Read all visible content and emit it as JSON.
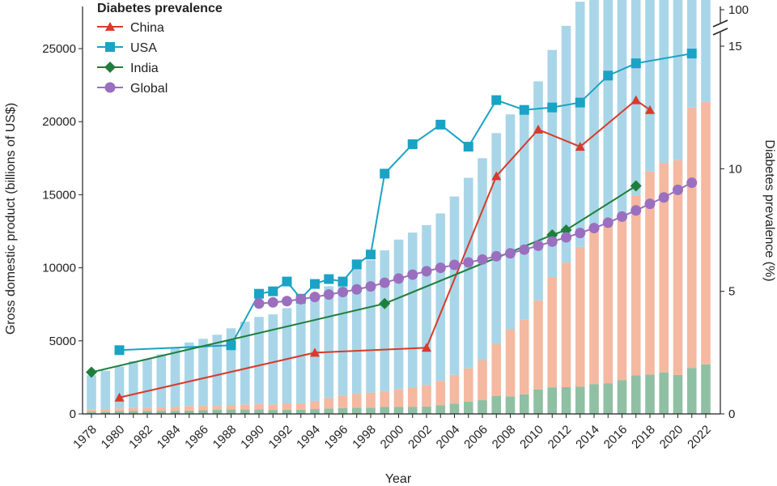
{
  "chart_data": {
    "type": "bar",
    "xlabel": "Year",
    "ylabel_left": "Gross domestic product (billions of US$)",
    "ylabel_right": "Diabetes prevalence (%)",
    "legend_title": "Diabetes prevalence",
    "legend_position": "top-left",
    "years": [
      1978,
      1979,
      1980,
      1981,
      1982,
      1983,
      1984,
      1985,
      1986,
      1987,
      1988,
      1989,
      1990,
      1991,
      1992,
      1993,
      1994,
      1995,
      1996,
      1997,
      1998,
      1999,
      2000,
      2001,
      2002,
      2003,
      2004,
      2005,
      2006,
      2007,
      2008,
      2009,
      2010,
      2011,
      2012,
      2013,
      2014,
      2015,
      2016,
      2017,
      2018,
      2019,
      2020,
      2021,
      2022
    ],
    "x_tick_labels": [
      "1978",
      "1980",
      "1982",
      "1984",
      "1986",
      "1988",
      "1990",
      "1992",
      "1994",
      "1996",
      "1998",
      "2000",
      "2002",
      "2004",
      "2006",
      "2008",
      "2010",
      "2012",
      "2014",
      "2016",
      "2018",
      "2020",
      "2022"
    ],
    "left_axis": {
      "ylim": [
        0,
        25000
      ],
      "ticks": [
        "0",
        "5000",
        "10000",
        "15000",
        "20000",
        "25000"
      ]
    },
    "right_axis": {
      "ylim": [
        0,
        15
      ],
      "ticks": [
        "0",
        "5",
        "10",
        "15"
      ],
      "break_label": "100"
    },
    "bar_series": [
      {
        "key": "india_gdp",
        "color": "#8fc0a3",
        "values": [
          140,
          150,
          190,
          200,
          200,
          210,
          210,
          230,
          250,
          280,
          300,
          300,
          320,
          270,
          290,
          280,
          330,
          370,
          400,
          420,
          430,
          470,
          470,
          490,
          510,
          600,
          710,
          830,
          940,
          1220,
          1200,
          1340,
          1680,
          1820,
          1830,
          1860,
          2040,
          2100,
          2300,
          2650,
          2700,
          2840,
          2670,
          3150,
          3390
        ]
      },
      {
        "key": "china_gdp",
        "color": "#f4b9a0",
        "values": [
          150,
          180,
          190,
          200,
          210,
          230,
          260,
          310,
          300,
          270,
          310,
          350,
          360,
          380,
          430,
          440,
          560,
          730,
          860,
          960,
          1030,
          1090,
          1210,
          1340,
          1470,
          1660,
          1960,
          2290,
          2750,
          3550,
          4590,
          5100,
          6090,
          7550,
          8530,
          9570,
          10480,
          11060,
          11230,
          12310,
          13890,
          14340,
          14690,
          17820,
          17960
        ]
      },
      {
        "key": "usa_gdp",
        "color": "#a8d6e8",
        "values": [
          2350,
          2630,
          2860,
          3210,
          3350,
          3640,
          4040,
          4350,
          4590,
          4870,
          5250,
          5660,
          5960,
          6160,
          6520,
          6860,
          7290,
          7640,
          8070,
          8580,
          9060,
          9630,
          10250,
          10580,
          10940,
          11460,
          12210,
          13040,
          13810,
          14450,
          14710,
          14450,
          14990,
          15540,
          16200,
          16780,
          17520,
          18240,
          18750,
          19540,
          20610,
          21430,
          21350,
          23590,
          25030
        ]
      }
    ],
    "line_series": [
      {
        "name": "China",
        "color": "#d93a2b",
        "marker": "triangle",
        "x": [
          1980,
          1994,
          2002,
          2007,
          2010,
          2013,
          2017,
          2018
        ],
        "y": [
          0.67,
          2.5,
          2.7,
          9.7,
          11.6,
          10.9,
          12.8,
          12.4
        ]
      },
      {
        "name": "USA",
        "color": "#1aa3c4",
        "marker": "square",
        "x": [
          1980,
          1988,
          1990,
          1991,
          1992,
          1993,
          1994,
          1995,
          1996,
          1997,
          1998,
          1999,
          2001,
          2003,
          2005,
          2007,
          2009,
          2011,
          2013,
          2015,
          2017,
          2021
        ],
        "y": [
          2.6,
          2.8,
          4.9,
          5.0,
          5.4,
          4.7,
          5.3,
          5.5,
          5.4,
          6.1,
          6.5,
          9.8,
          11.0,
          11.8,
          10.9,
          12.8,
          12.4,
          12.5,
          12.7,
          13.8,
          14.3,
          14.7
        ]
      },
      {
        "name": "India",
        "color": "#1e7f3c",
        "marker": "diamond",
        "x": [
          1978,
          1999,
          2011,
          2012,
          2017
        ],
        "y": [
          1.7,
          4.5,
          7.3,
          7.5,
          9.3
        ]
      },
      {
        "name": "Global",
        "color": "#9b6fbf",
        "marker": "circle",
        "x": [
          1990,
          1991,
          1992,
          1993,
          1994,
          1995,
          1996,
          1997,
          1998,
          1999,
          2000,
          2001,
          2002,
          2003,
          2004,
          2005,
          2006,
          2007,
          2008,
          2009,
          2010,
          2011,
          2012,
          2013,
          2014,
          2015,
          2016,
          2017,
          2018,
          2019,
          2020,
          2021
        ],
        "y": [
          4.5,
          4.55,
          4.6,
          4.68,
          4.77,
          4.87,
          4.97,
          5.08,
          5.2,
          5.35,
          5.52,
          5.68,
          5.82,
          5.96,
          6.08,
          6.18,
          6.3,
          6.43,
          6.55,
          6.7,
          6.86,
          7.03,
          7.2,
          7.38,
          7.58,
          7.8,
          8.05,
          8.3,
          8.57,
          8.83,
          9.14,
          9.43
        ]
      }
    ]
  }
}
